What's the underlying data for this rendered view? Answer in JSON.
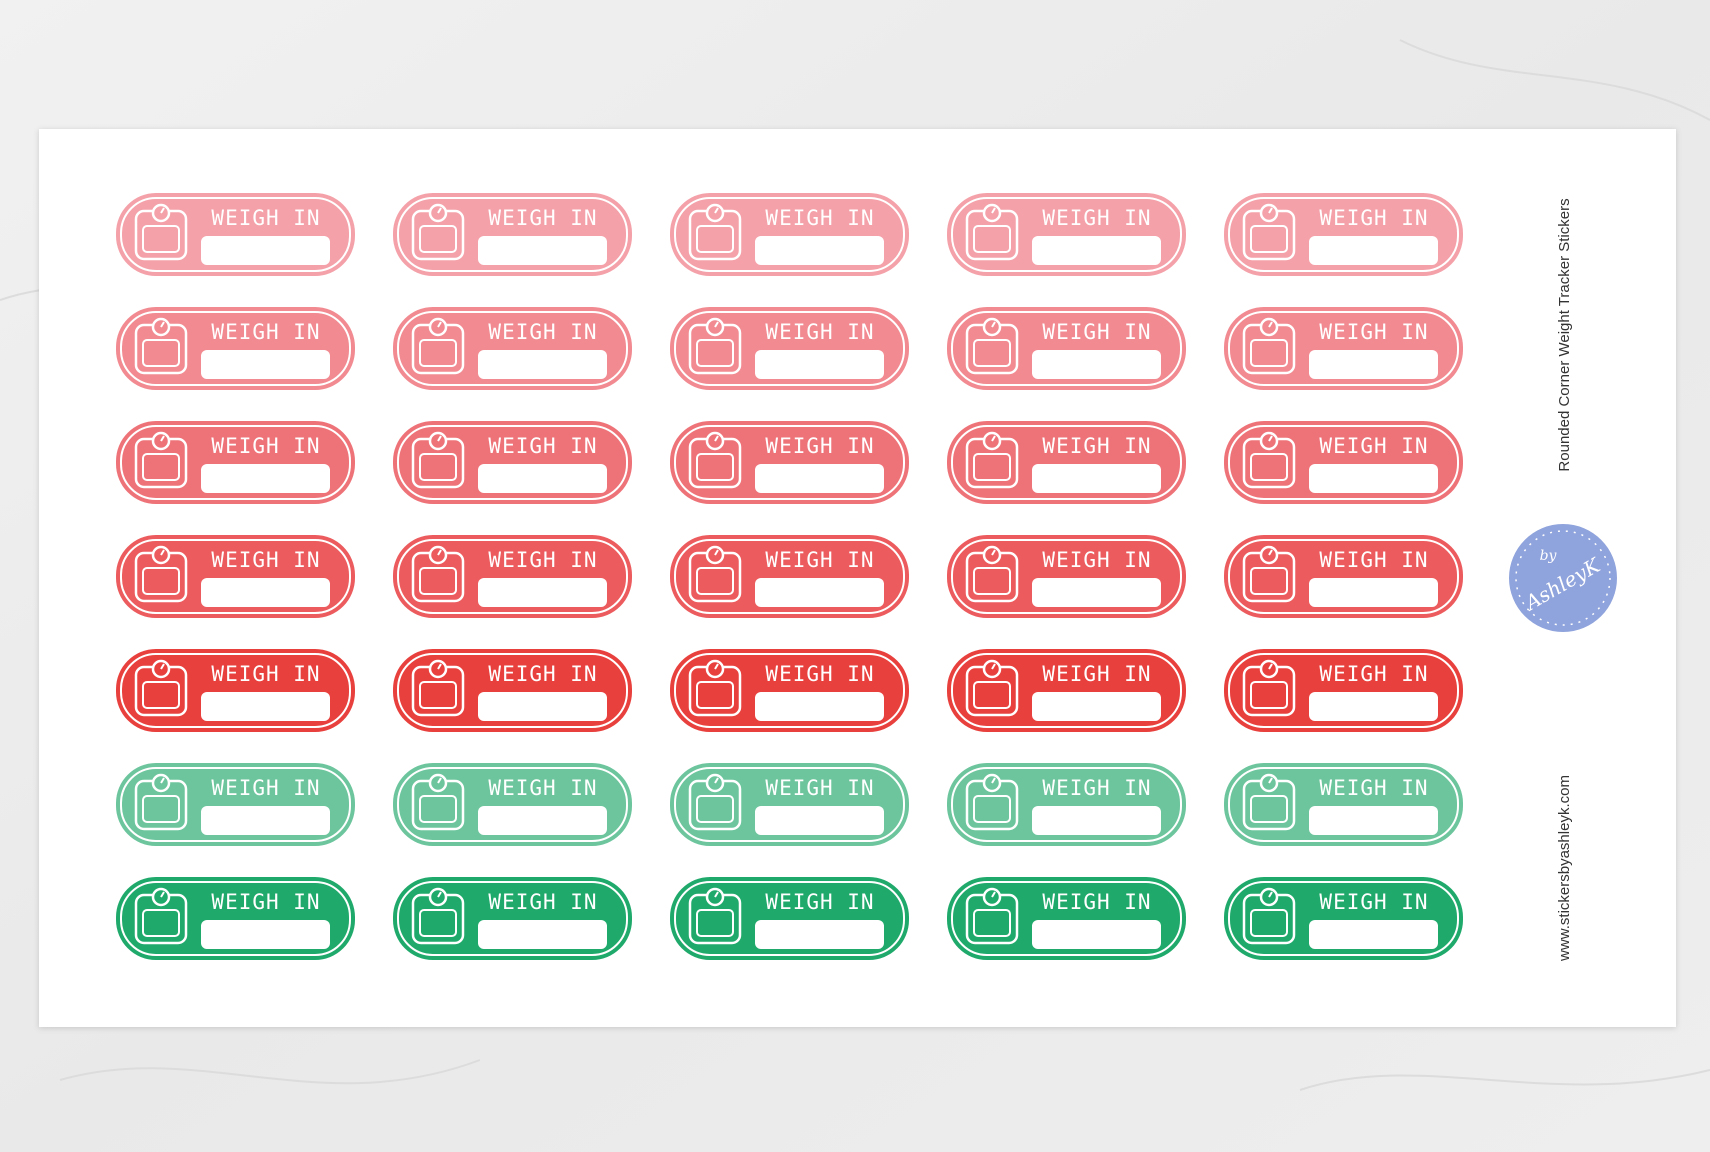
{
  "sheet": {
    "title": "Rounded Corner Weight Tracker  Stickers",
    "website": "www.stickersbyashleyk.com",
    "logo": {
      "by": "by",
      "name": "AshleyK"
    }
  },
  "stickers": {
    "rows": [
      {
        "color": "#f4a1a9",
        "labels": [
          "WEIGH IN",
          "WEIGH IN",
          "WEIGH IN",
          "WEIGH IN",
          "WEIGH IN"
        ]
      },
      {
        "color": "#f18a91",
        "labels": [
          "WEIGH IN",
          "WEIGH IN",
          "WEIGH IN",
          "WEIGH IN",
          "WEIGH IN"
        ]
      },
      {
        "color": "#ee7379",
        "labels": [
          "WEIGH IN",
          "WEIGH IN",
          "WEIGH IN",
          "WEIGH IN",
          "WEIGH IN"
        ]
      },
      {
        "color": "#ec5b5d",
        "labels": [
          "WEIGH IN",
          "WEIGH IN",
          "WEIGH IN",
          "WEIGH IN",
          "WEIGH IN"
        ]
      },
      {
        "color": "#e8403d",
        "labels": [
          "WEIGH IN",
          "WEIGH IN",
          "WEIGH IN",
          "WEIGH IN",
          "WEIGH IN"
        ]
      },
      {
        "color": "#6cc59d",
        "labels": [
          "WEIGH IN",
          "WEIGH IN",
          "WEIGH IN",
          "WEIGH IN",
          "WEIGH IN"
        ]
      },
      {
        "color": "#1fa96b",
        "labels": [
          "WEIGH IN",
          "WEIGH IN",
          "WEIGH IN",
          "WEIGH IN",
          "WEIGH IN"
        ]
      }
    ]
  }
}
